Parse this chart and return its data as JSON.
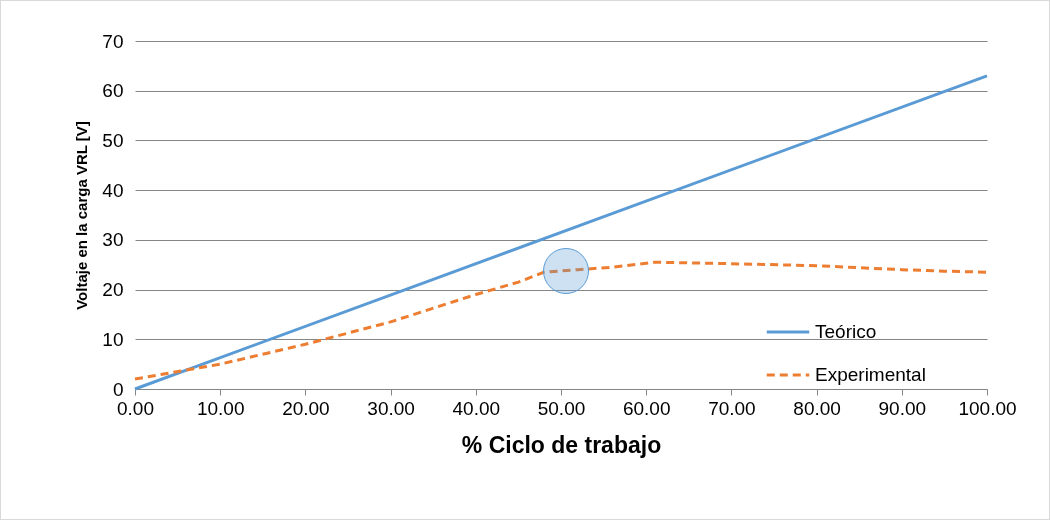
{
  "chart_data": {
    "type": "line",
    "xlabel": "% Ciclo de trabajo",
    "ylabel": "Voltaje en la carga VRL [V]",
    "xlim": [
      0,
      100
    ],
    "xticks": [
      {
        "value": 0,
        "label": "0.00"
      },
      {
        "value": 10,
        "label": "10.00"
      },
      {
        "value": 20,
        "label": "20.00"
      },
      {
        "value": 30,
        "label": "30.00"
      },
      {
        "value": 40,
        "label": "40.00"
      },
      {
        "value": 50,
        "label": "50.00"
      },
      {
        "value": 60,
        "label": "60.00"
      },
      {
        "value": 70,
        "label": "70.00"
      },
      {
        "value": 80,
        "label": "80.00"
      },
      {
        "value": 90,
        "label": "90.00"
      },
      {
        "value": 100,
        "label": "100.00"
      }
    ],
    "ylim": [
      0,
      70
    ],
    "yticks": [
      0,
      10,
      20,
      30,
      40,
      50,
      60,
      70
    ],
    "grid": "y",
    "legend": "bottom right",
    "marker": "none",
    "series": [
      {
        "name": "Teórico",
        "color": "#5b9bd5",
        "line_style": "solid",
        "x": [
          0,
          100
        ],
        "values": [
          0,
          63
        ]
      },
      {
        "name": "Experimental",
        "color": "#ed7d31",
        "line_style": "dashed",
        "x": [
          0,
          10,
          20,
          30,
          40,
          45,
          48,
          52,
          56,
          61,
          70,
          80,
          90,
          95,
          100
        ],
        "values": [
          2,
          5,
          9,
          13.5,
          19,
          21.5,
          23.5,
          24,
          24.5,
          25.5,
          25.2,
          24.8,
          24,
          23.7,
          23.5
        ]
      }
    ]
  }
}
